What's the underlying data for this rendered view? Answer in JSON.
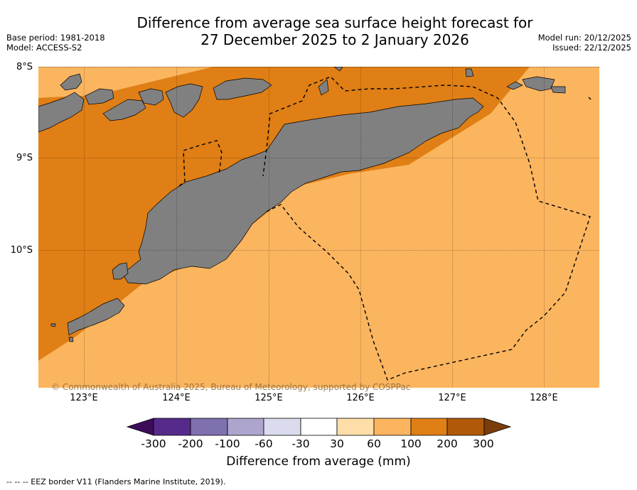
{
  "title": {
    "line1": "Difference from average sea surface height forecast for",
    "line2": "27 December 2025 to 2 January 2026"
  },
  "meta": {
    "base_period": "Base period: 1981-2018",
    "model": "Model: ACCESS-S2",
    "model_run": "Model run: 20/12/2025",
    "issued": "Issued: 22/12/2025"
  },
  "map": {
    "lat_labels": [
      "8°S",
      "9°S",
      "10°S"
    ],
    "lon_labels": [
      "123°E",
      "124°E",
      "125°E",
      "126°E",
      "127°E",
      "128°E"
    ],
    "copyright": "© Commonwealth of Australia 2025, Bureau of Meteorology, supported by COSPPac",
    "colors": {
      "band_30_60": "#fbb55f",
      "band_60_100": "#e07f15",
      "land": "#808080",
      "eez": "#000000"
    }
  },
  "colorbar": {
    "ticks": [
      "-300",
      "-200",
      "-100",
      "-60",
      "-30",
      "30",
      "60",
      "100",
      "200",
      "300"
    ],
    "colors": [
      "#3d0d59",
      "#562a8b",
      "#7f70ae",
      "#aea5cf",
      "#dadbec",
      "#ffffff",
      "#fedea8",
      "#fbb55f",
      "#e07f15",
      "#b05a09",
      "#7a3d0b"
    ],
    "title": "Difference from average (mm)"
  },
  "footnote": "-- -- -- EEZ border V11 (Flanders Marine Institute, 2019)."
}
